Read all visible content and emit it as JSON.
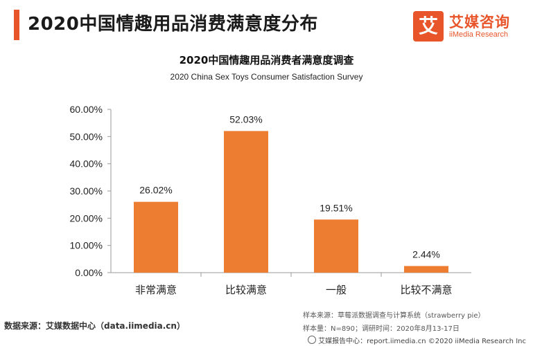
{
  "page": {
    "title": "2020中国情趣用品消费满意度分布"
  },
  "logo": {
    "mark": "艾",
    "name_cn": "艾媒咨询",
    "name_en": "iiMedia Research"
  },
  "chart_data": {
    "type": "bar",
    "title": "2020中国情趣用品消费者满意度调查",
    "subtitle": "2020 China Sex Toys Consumer Satisfaction Survey",
    "categories": [
      "非常满意",
      "比较满意",
      "一般",
      "比较不满意"
    ],
    "values": [
      26.02,
      52.03,
      19.51,
      2.44
    ],
    "value_labels": [
      "26.02%",
      "52.03%",
      "19.51%",
      "2.44%"
    ],
    "ylim": [
      0,
      60
    ],
    "yticks": [
      0,
      10,
      20,
      30,
      40,
      50,
      60
    ],
    "ytick_labels": [
      "0.00%",
      "10.00%",
      "20.00%",
      "30.00%",
      "40.00%",
      "50.00%",
      "60.00%"
    ],
    "grid": false,
    "bar_color": "#ed7d31"
  },
  "source": {
    "left": "数据来源：艾媒数据中心（data.iimedia.cn）",
    "sample_source": "样本来源：草莓派数据调查与计算系统（strawberry pie）",
    "sample_size": "样本量：N=890；调研时间：2020年8月13-17日"
  },
  "footer": {
    "text": "艾媒报告中心：report.iimedia.cn  ©2020  iiMedia Research  Inc"
  }
}
